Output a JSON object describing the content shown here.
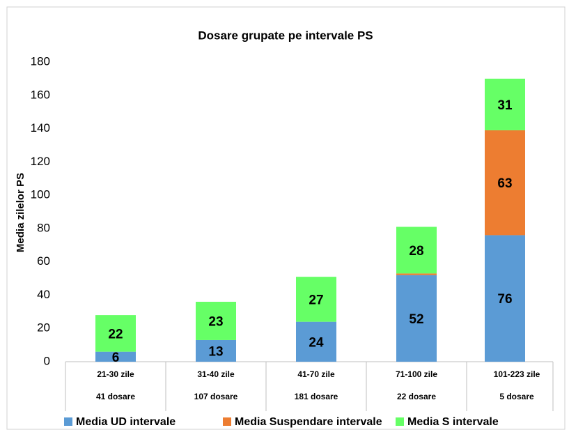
{
  "chart_data": {
    "type": "stacked_bar",
    "title": "Dosare grupate pe intervale PS",
    "y_label": "Media zilelor PS",
    "categories": [
      [
        "21-30 zile",
        "41 dosare"
      ],
      [
        "31-40 zile",
        "107 dosare"
      ],
      [
        "41-70 zile",
        "181 dosare"
      ],
      [
        "71-100 zile",
        "22 dosare"
      ],
      [
        "101-223 zile",
        "5 dosare"
      ]
    ],
    "series": [
      {
        "name": "Media UD intervale",
        "color": "#5b9bd5",
        "values": [
          6,
          13,
          24,
          52,
          76
        ]
      },
      {
        "name": "Media Suspendare intervale",
        "color": "#ed7d31",
        "values": [
          0,
          0,
          0,
          1,
          63
        ]
      },
      {
        "name": "Media S intervale",
        "color": "#66ff66",
        "values": [
          22,
          23,
          27,
          28,
          31
        ]
      }
    ],
    "ylim": [
      0,
      180
    ],
    "yticks": [
      0,
      20,
      40,
      60,
      80,
      100,
      120,
      140,
      160,
      180
    ],
    "data_labels": true,
    "legend": "bottom"
  }
}
